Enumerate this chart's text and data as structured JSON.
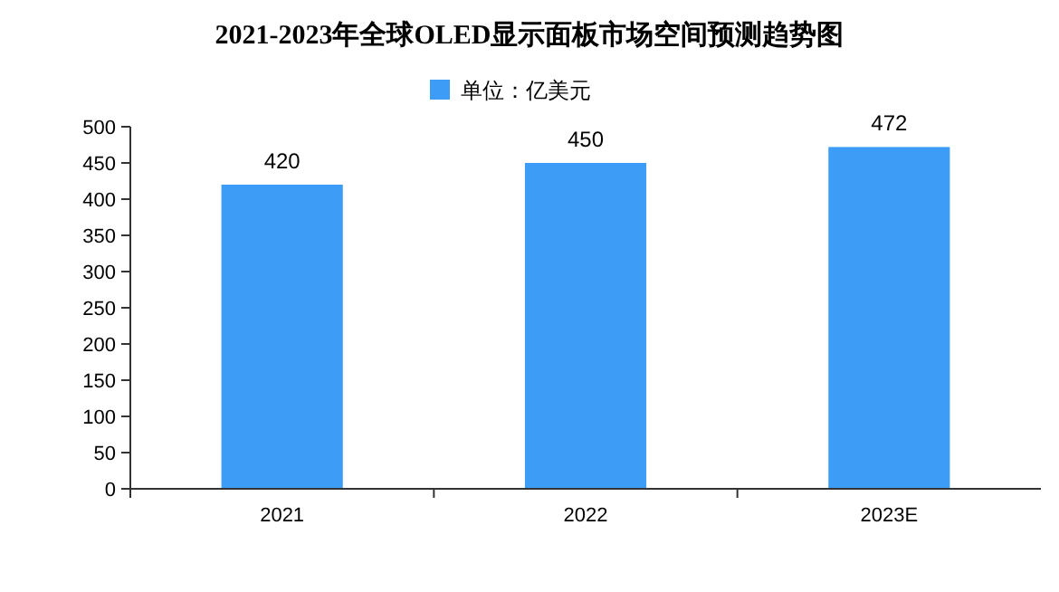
{
  "chart_data": {
    "type": "bar",
    "title": "2021-2023年全球OLED显示面板市场空间预测趋势图",
    "categories": [
      "2021",
      "2022",
      "2023E"
    ],
    "series": [
      {
        "name": "单位：亿美元",
        "color": "#3d9cf5",
        "values": [
          420,
          450,
          472
        ]
      }
    ],
    "ylim": [
      0,
      500
    ],
    "yticks": [
      0,
      50,
      100,
      150,
      200,
      250,
      300,
      350,
      400,
      450,
      500
    ],
    "grid": false,
    "legend": "top",
    "data_labels": true
  }
}
